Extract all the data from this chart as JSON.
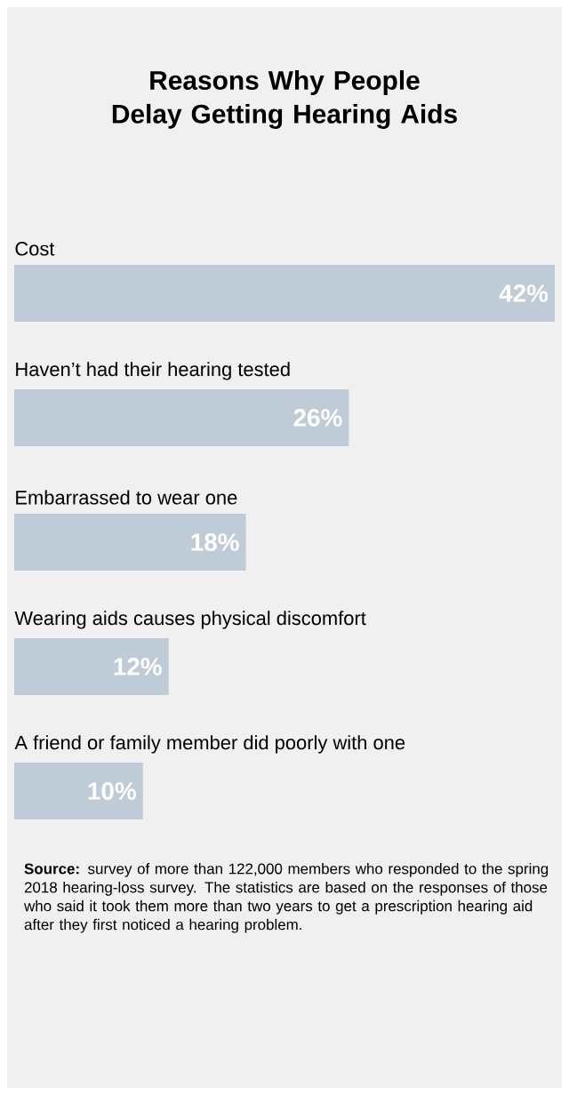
{
  "chart_data": {
    "type": "bar",
    "orientation": "horizontal",
    "title": "Reasons Why People Delay Getting Hearing Aids",
    "categories": [
      "Cost",
      "Haven’t had their hearing tested",
      "Embarrassed to wear one",
      "Wearing aids causes physical discomfort",
      "A friend or family member did poorly with one"
    ],
    "values": [
      42,
      26,
      18,
      12,
      10
    ],
    "value_labels": [
      "42%",
      "26%",
      "18%",
      "12%",
      "10%"
    ],
    "color": "#bfcbd6",
    "annotations": [
      "**Source:** survey of more than 122,000 members who responded to the spring 2018 hearing-loss survey. The statistics are based on the responses of those who said it took them more than two years to get a prescription hearing aid after they first noticed a hearing problem."
    ]
  }
}
